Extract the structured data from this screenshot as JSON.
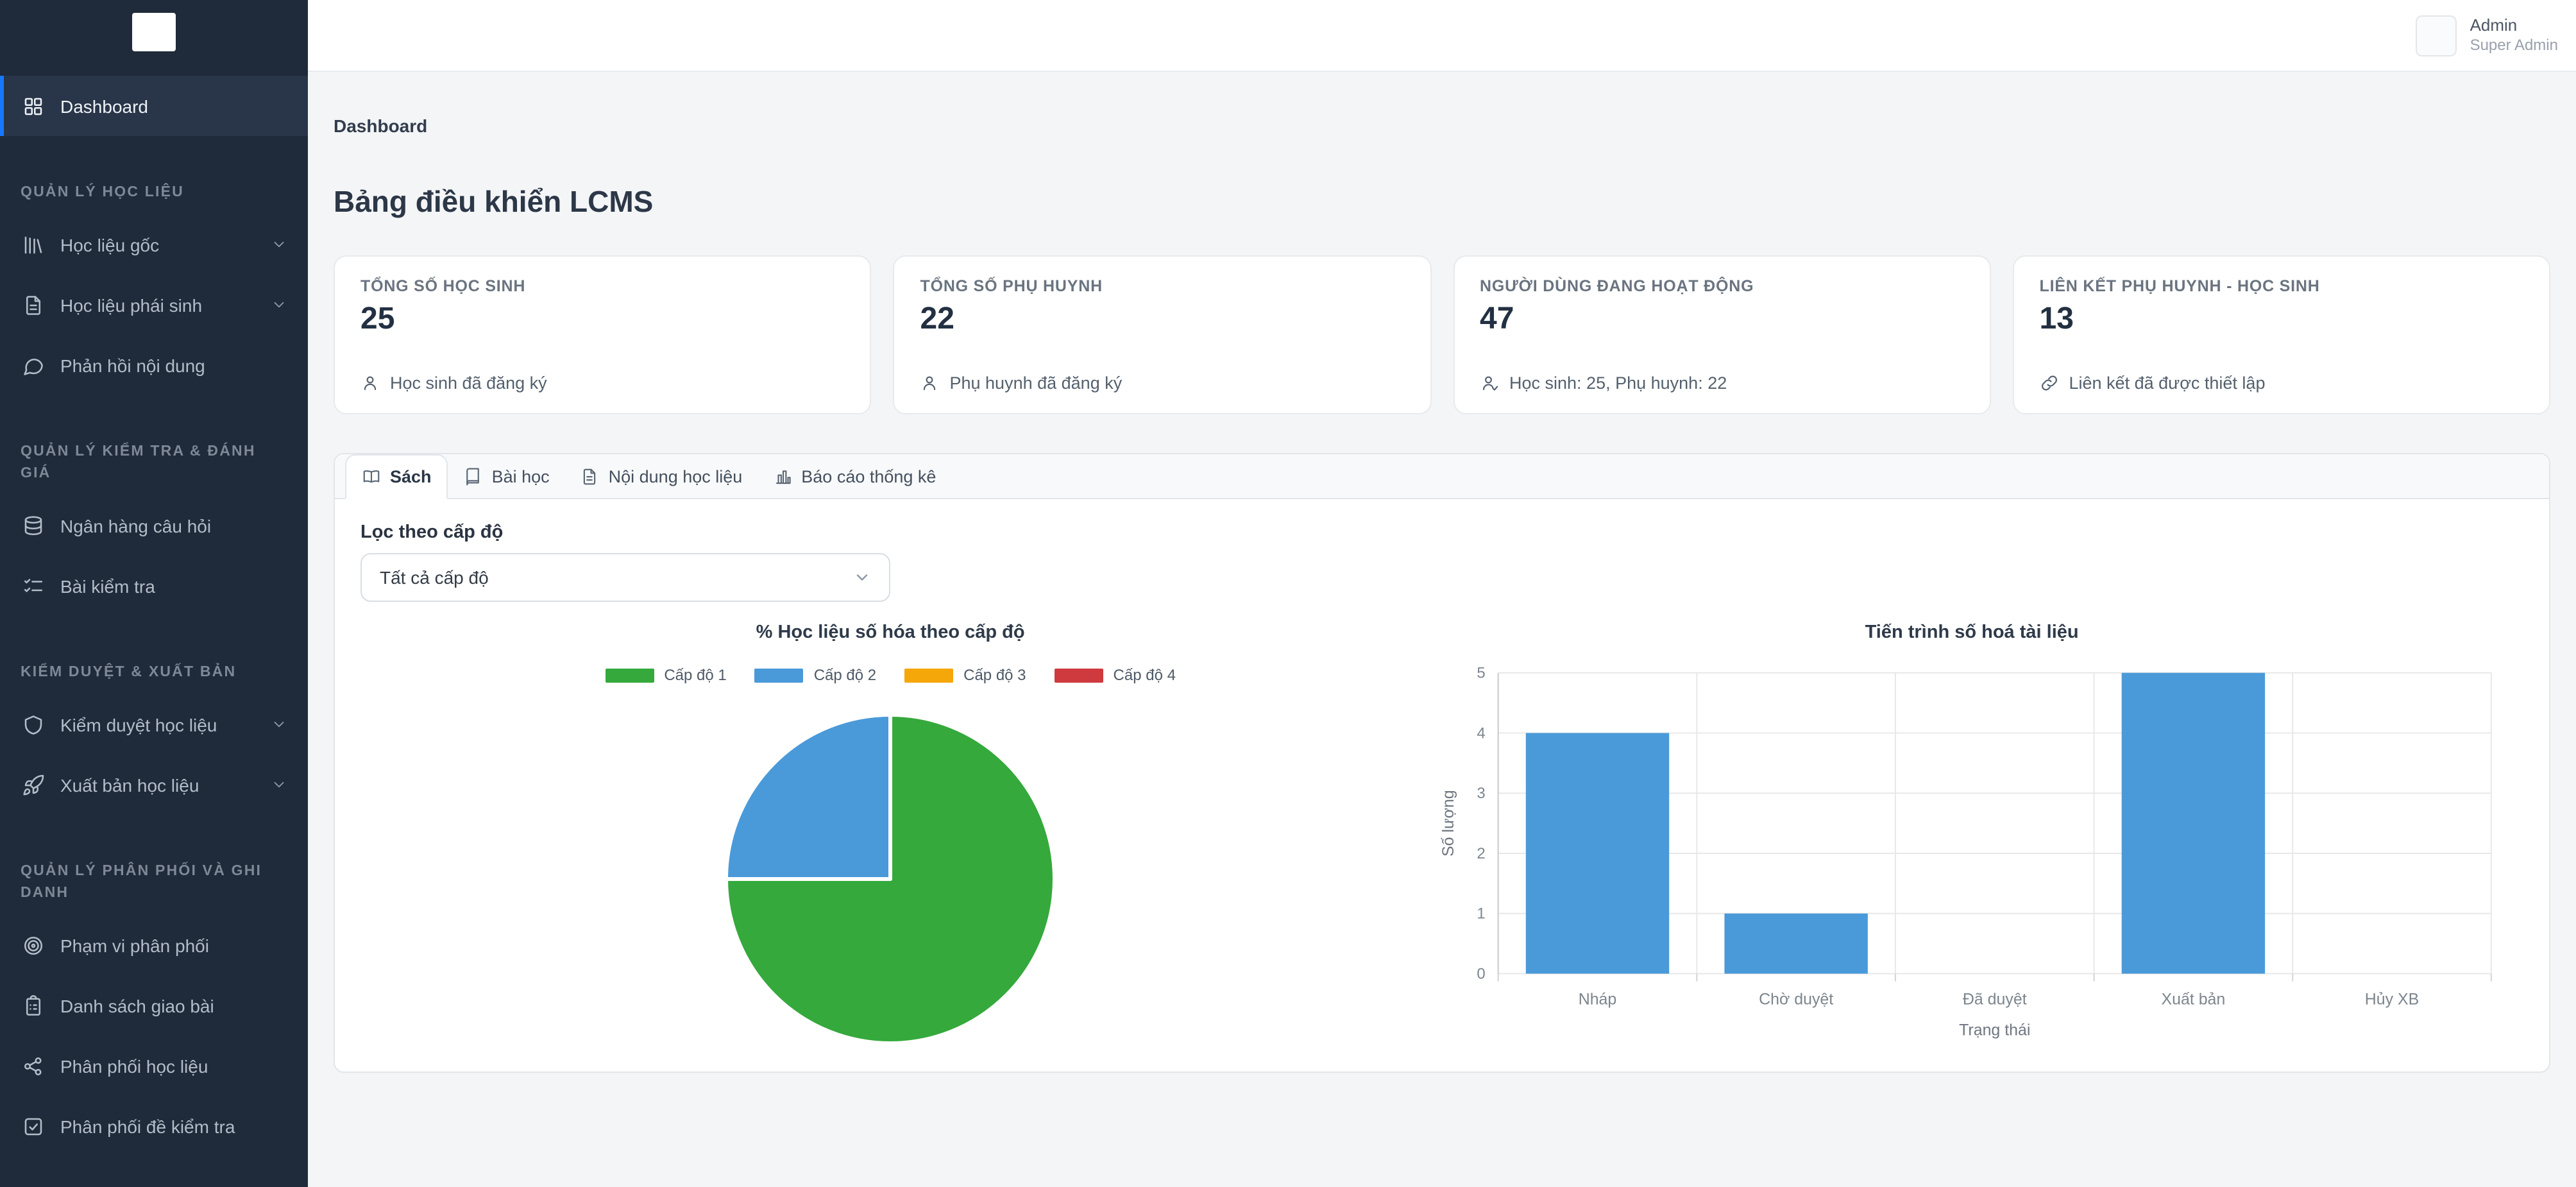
{
  "sidebar": {
    "dashboard_label": "Dashboard",
    "sections": [
      {
        "title": "QUẢN LÝ HỌC LIỆU",
        "items": [
          {
            "label": "Học liệu gốc",
            "icon": "books-icon",
            "chevron": true
          },
          {
            "label": "Học liệu phái sinh",
            "icon": "file-icon",
            "chevron": true
          },
          {
            "label": "Phản hồi nội dung",
            "icon": "comment-icon",
            "chevron": false
          }
        ]
      },
      {
        "title": "QUẢN LÝ KIỂM TRA & ĐÁNH GIÁ",
        "items": [
          {
            "label": "Ngân hàng câu hỏi",
            "icon": "database-icon",
            "chevron": false
          },
          {
            "label": "Bài kiểm tra",
            "icon": "checklist-icon",
            "chevron": false
          }
        ]
      },
      {
        "title": "KIỂM DUYỆT & XUẤT BẢN",
        "items": [
          {
            "label": "Kiểm duyệt học liệu",
            "icon": "shield-icon",
            "chevron": true
          },
          {
            "label": "Xuất bản học liệu",
            "icon": "rocket-icon",
            "chevron": true
          }
        ]
      },
      {
        "title": "QUẢN LÝ PHÂN PHỐI VÀ GHI DANH",
        "items": [
          {
            "label": "Phạm vi phân phối",
            "icon": "target-icon",
            "chevron": false
          },
          {
            "label": "Danh sách giao bài",
            "icon": "clipboard-icon",
            "chevron": false
          },
          {
            "label": "Phân phối học liệu",
            "icon": "share-icon",
            "chevron": false
          },
          {
            "label": "Phân phối đề kiểm tra",
            "icon": "checkbox-icon",
            "chevron": false
          }
        ]
      }
    ]
  },
  "topbar": {
    "user_name": "Admin",
    "user_role": "Super Admin"
  },
  "breadcrumb": "Dashboard",
  "page_title": "Bảng điều khiển LCMS",
  "stats": [
    {
      "label": "TỔNG SỐ HỌC SINH",
      "value": "25",
      "desc": "Học sinh đã đăng ký",
      "icon": "user-icon"
    },
    {
      "label": "TỔNG SỐ PHỤ HUYNH",
      "value": "22",
      "desc": "Phụ huynh đã đăng ký",
      "icon": "user-icon"
    },
    {
      "label": "NGƯỜI DÙNG ĐANG HOẠT ĐỘNG",
      "value": "47",
      "desc": "Học sinh: 25, Phụ huynh: 22",
      "icon": "user-check-icon"
    },
    {
      "label": "LIÊN KẾT PHỤ HUYNH - HỌC SINH",
      "value": "13",
      "desc": "Liên kết đã được thiết lập",
      "icon": "link-icon"
    }
  ],
  "tabs": [
    {
      "label": "Sách",
      "icon": "book-open-icon",
      "active": true
    },
    {
      "label": "Bài học",
      "icon": "book-icon",
      "active": false
    },
    {
      "label": "Nội dung học liệu",
      "icon": "file-text-icon",
      "active": false
    },
    {
      "label": "Báo cáo thống kê",
      "icon": "bar-chart-icon",
      "active": false
    }
  ],
  "filter": {
    "label": "Lọc theo cấp độ",
    "value": "Tất cả cấp độ"
  },
  "chart_data": [
    {
      "type": "pie",
      "title": "% Học liệu số hóa theo cấp độ",
      "labels": [
        "Cấp độ 1",
        "Cấp độ 2",
        "Cấp độ 3",
        "Cấp độ 4"
      ],
      "values": [
        75,
        25,
        0,
        0
      ],
      "colors": [
        "#35a93c",
        "#4a9ad9",
        "#f5a70a",
        "#cf3a3e"
      ],
      "legend_position": "top"
    },
    {
      "type": "bar",
      "title": "Tiến trình số hoá tài liệu",
      "categories": [
        "Nháp",
        "Chờ duyệt",
        "Đã duyệt",
        "Xuất bản",
        "Hủy XB"
      ],
      "values": [
        4,
        1,
        0,
        5,
        0
      ],
      "xlabel": "Trạng thái",
      "ylabel": "Số lượng",
      "ylim": [
        0,
        5
      ],
      "bar_color": "#4a9ad9",
      "grid": true
    }
  ]
}
